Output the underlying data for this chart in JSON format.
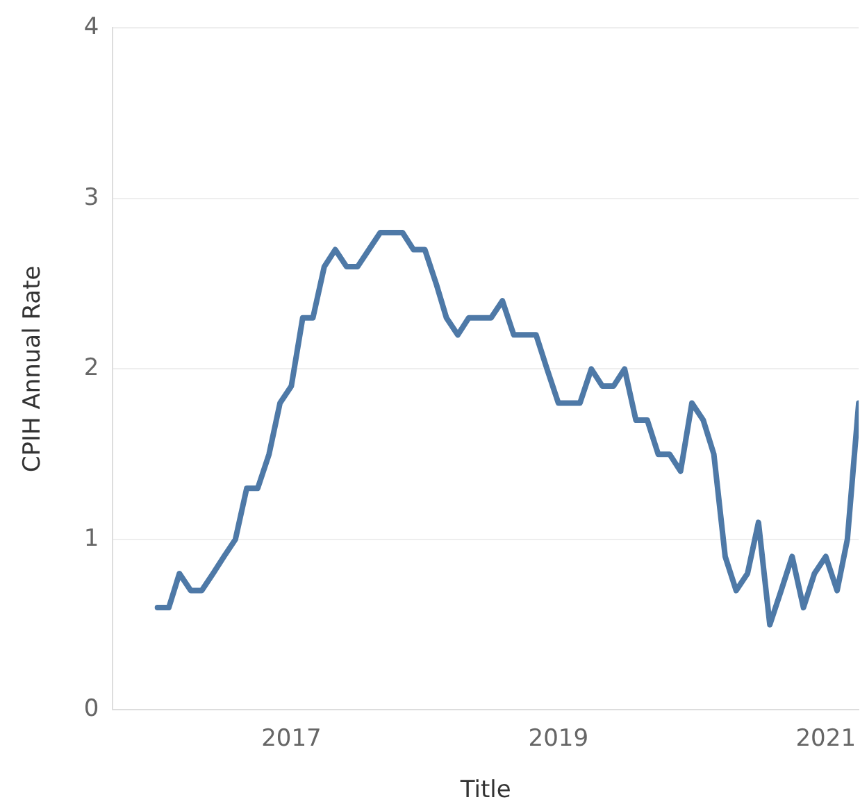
{
  "chart_data": {
    "type": "line",
    "xlabel": "Title",
    "ylabel": "CPIH Annual Rate",
    "x": [
      "2016-01",
      "2016-02",
      "2016-03",
      "2016-04",
      "2016-05",
      "2016-06",
      "2016-07",
      "2016-08",
      "2016-09",
      "2016-10",
      "2016-11",
      "2016-12",
      "2017-01",
      "2017-02",
      "2017-03",
      "2017-04",
      "2017-05",
      "2017-06",
      "2017-07",
      "2017-08",
      "2017-09",
      "2017-10",
      "2017-11",
      "2017-12",
      "2018-01",
      "2018-02",
      "2018-03",
      "2018-04",
      "2018-05",
      "2018-06",
      "2018-07",
      "2018-08",
      "2018-09",
      "2018-10",
      "2018-11",
      "2018-12",
      "2019-01",
      "2019-02",
      "2019-03",
      "2019-04",
      "2019-05",
      "2019-06",
      "2019-07",
      "2019-08",
      "2019-09",
      "2019-10",
      "2019-11",
      "2019-12",
      "2020-01",
      "2020-02",
      "2020-03",
      "2020-04",
      "2020-05",
      "2020-06",
      "2020-07",
      "2020-08",
      "2020-09",
      "2020-10",
      "2020-11",
      "2020-12",
      "2021-01",
      "2021-02",
      "2021-03",
      "2021-04"
    ],
    "series": [
      {
        "color": "#4e79a7",
        "values": [
          0.6,
          0.6,
          0.8,
          0.7,
          0.7,
          0.8,
          0.9,
          1.0,
          1.3,
          1.3,
          1.5,
          1.8,
          1.9,
          2.3,
          2.3,
          2.6,
          2.7,
          2.6,
          2.6,
          2.7,
          2.8,
          2.8,
          2.8,
          2.7,
          2.7,
          2.5,
          2.3,
          2.2,
          2.3,
          2.3,
          2.3,
          2.4,
          2.2,
          2.2,
          2.2,
          2.0,
          1.8,
          1.8,
          1.8,
          2.0,
          1.9,
          1.9,
          2.0,
          1.7,
          1.7,
          1.5,
          1.5,
          1.4,
          1.8,
          1.7,
          1.5,
          0.9,
          0.7,
          0.8,
          1.1,
          0.5,
          0.7,
          0.9,
          0.6,
          0.8,
          0.9,
          0.7,
          1.0,
          1.8
        ]
      }
    ],
    "xlim": [
      "2015-09",
      "2021-04"
    ],
    "xticks": [
      {
        "value": "2017-01",
        "label": "2017"
      },
      {
        "value": "2019-01",
        "label": "2019"
      },
      {
        "value": "2021-01",
        "label": "2021"
      }
    ],
    "ylim": [
      0,
      4
    ],
    "yticks": [
      0,
      1,
      2,
      3,
      4
    ],
    "grid": "y",
    "legend": false,
    "marker": "none",
    "line_style": "solid"
  }
}
